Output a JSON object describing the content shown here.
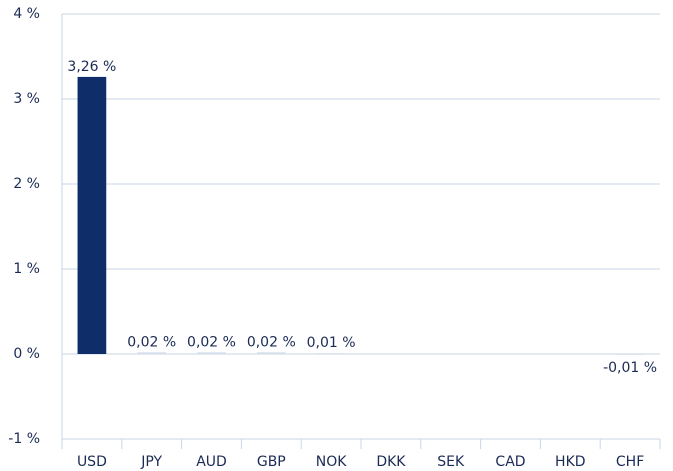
{
  "chart_data": {
    "type": "bar",
    "categories": [
      "USD",
      "JPY",
      "AUD",
      "GBP",
      "NOK",
      "DKK",
      "SEK",
      "CAD",
      "HKD",
      "CHF"
    ],
    "values": [
      3.26,
      0.02,
      0.02,
      0.02,
      0.01,
      0,
      0,
      0,
      0,
      -0.01
    ],
    "value_labels": [
      "3,26 %",
      "0,02 %",
      "0,02 %",
      "0,02 %",
      "0,01 %",
      null,
      null,
      null,
      null,
      "-0,01 %"
    ],
    "color": "#0f2d69",
    "ylim": [
      -1,
      4
    ],
    "yticks": [
      {
        "value": -1,
        "label": "-1 %"
      },
      {
        "value": 0,
        "label": "0 %"
      },
      {
        "value": 1,
        "label": "1 %"
      },
      {
        "value": 2,
        "label": "2 %"
      },
      {
        "value": 3,
        "label": "3 %"
      },
      {
        "value": 4,
        "label": "4 %"
      }
    ],
    "grid": true
  }
}
